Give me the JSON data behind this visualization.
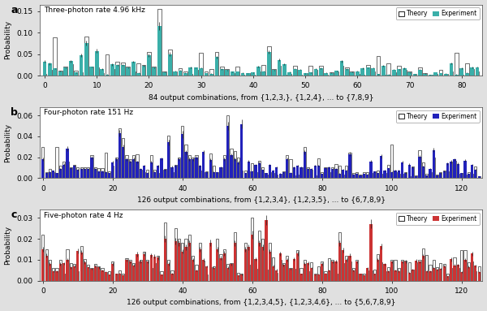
{
  "panel_a": {
    "title": "Three-photon rate 4.96 kHz",
    "xlabel": "84 output combinations, from {1,2,3,}, {1,2,4}, ... to {7,8,9}",
    "ylabel": "Probability",
    "ylim": [
      0,
      0.165
    ],
    "yticks": [
      0.0,
      0.05,
      0.1,
      0.15
    ],
    "n_bars": 84,
    "exp_color": "#3aafa9",
    "theory_color": "#ffffff",
    "theory_edge": "#333333",
    "label": "a",
    "xticks": [
      0,
      10,
      20,
      30,
      40,
      50,
      60,
      70,
      80
    ]
  },
  "panel_b": {
    "title": "Four-photon rate 151 Hz",
    "xlabel": "126 output combinations, from {1,2,3,4}, {1,2,3,5}, ... to {6,7,8,9}",
    "ylabel": "Probability",
    "ylim": [
      0,
      0.068
    ],
    "yticks": [
      0.0,
      0.02,
      0.04,
      0.06
    ],
    "n_bars": 126,
    "exp_color": "#2222bb",
    "theory_color": "#ffffff",
    "theory_edge": "#333333",
    "label": "b",
    "xticks": [
      0,
      20,
      40,
      60,
      80,
      100,
      120
    ]
  },
  "panel_c": {
    "title": "Five-photon rate 4 Hz",
    "xlabel": "126 output combinations, from {1,2,3,4,5}, {1,2,3,4,6}, ... to {5,6,7,8,9}",
    "ylabel": "Probability",
    "ylim": [
      0,
      0.034
    ],
    "yticks": [
      0.0,
      0.01,
      0.02,
      0.03
    ],
    "n_bars": 126,
    "exp_color": "#cc3333",
    "theory_color": "#ffffff",
    "theory_edge": "#333333",
    "label": "c",
    "xticks": [
      0,
      20,
      40,
      60,
      80,
      100,
      120
    ]
  },
  "fig_width": 6.0,
  "fig_height": 3.83
}
